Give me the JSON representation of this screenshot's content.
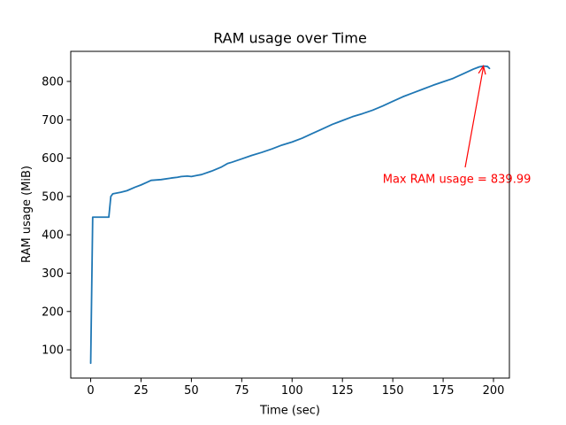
{
  "chart_data": {
    "type": "line",
    "title": "RAM usage over Time",
    "xlabel": "Time (sec)",
    "ylabel": "RAM usage (MiB)",
    "xlim": [
      -9.9,
      207.9
    ],
    "ylim": [
      26.3,
      878.4
    ],
    "x_ticks": [
      0,
      25,
      50,
      75,
      100,
      125,
      150,
      175,
      200
    ],
    "y_ticks": [
      100,
      200,
      300,
      400,
      500,
      600,
      700,
      800
    ],
    "grid": false,
    "series": [
      {
        "color": "#1f77b4",
        "x": [
          0,
          1,
          2,
          5,
          8,
          9,
          10,
          11,
          15,
          18,
          22,
          25,
          28,
          30,
          35,
          40,
          43,
          45,
          48,
          50,
          53,
          55,
          60,
          65,
          68,
          70,
          75,
          80,
          85,
          90,
          95,
          100,
          105,
          110,
          115,
          120,
          125,
          130,
          135,
          140,
          145,
          150,
          155,
          160,
          165,
          170,
          175,
          180,
          185,
          190,
          193,
          195,
          197,
          198
        ],
        "y": [
          65,
          446,
          446,
          446,
          446,
          446,
          500,
          507,
          511,
          515,
          524,
          530,
          537,
          542,
          544,
          548,
          550,
          552,
          553,
          552,
          555,
          557,
          566,
          577,
          586,
          589,
          598,
          607,
          615,
          624,
          634,
          642,
          652,
          664,
          676,
          688,
          698,
          708,
          716,
          725,
          736,
          748,
          760,
          770,
          780,
          790,
          799,
          808,
          820,
          832,
          838,
          840,
          839,
          834
        ]
      }
    ],
    "annotations": [
      {
        "text": "Max RAM usage = 839.99",
        "x": 195,
        "y": 839.99,
        "text_x": 145,
        "text_y": 545,
        "color": "#ff0000"
      }
    ]
  }
}
